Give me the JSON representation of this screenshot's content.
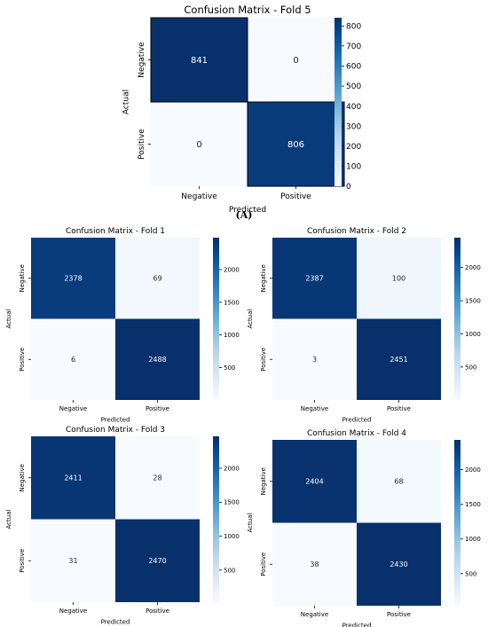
{
  "caption": "(A)",
  "chart_data": [
    {
      "type": "heatmap",
      "title": "Confusion Matrix - Fold 5",
      "xlabel": "Predicted",
      "ylabel": "Actual",
      "x_categories": [
        "Negative",
        "Positive"
      ],
      "y_categories": [
        "Negative",
        "Positive"
      ],
      "matrix": [
        [
          841,
          0
        ],
        [
          0,
          806
        ]
      ],
      "colorbar": {
        "colormap": "Blues",
        "range": [
          0,
          841
        ],
        "ticks": [
          0,
          100,
          200,
          300,
          400,
          500,
          600,
          700,
          800
        ]
      },
      "grid": false,
      "legend": "none"
    },
    {
      "type": "heatmap",
      "title": "Confusion Matrix - Fold 1",
      "xlabel": "Predicted",
      "ylabel": "Actual",
      "x_categories": [
        "Negative",
        "Positive"
      ],
      "y_categories": [
        "Negative",
        "Positive"
      ],
      "matrix": [
        [
          2378,
          69
        ],
        [
          6,
          2488
        ]
      ],
      "colorbar": {
        "colormap": "Blues",
        "range": [
          6,
          2488
        ],
        "ticks": [
          500,
          1000,
          1500,
          2000
        ]
      },
      "grid": false,
      "legend": "none"
    },
    {
      "type": "heatmap",
      "title": "Confusion Matrix - Fold 2",
      "xlabel": "Predicted",
      "ylabel": "Actual",
      "x_categories": [
        "Negative",
        "Positive"
      ],
      "y_categories": [
        "Negative",
        "Positive"
      ],
      "matrix": [
        [
          2387,
          100
        ],
        [
          3,
          2451
        ]
      ],
      "colorbar": {
        "colormap": "Blues",
        "range": [
          3,
          2451
        ],
        "ticks": [
          500,
          1000,
          1500,
          2000
        ]
      },
      "grid": false,
      "legend": "none"
    },
    {
      "type": "heatmap",
      "title": "Confusion Matrix - Fold 3",
      "xlabel": "Predicted",
      "ylabel": "Actual",
      "x_categories": [
        "Negative",
        "Positive"
      ],
      "y_categories": [
        "Negative",
        "Positive"
      ],
      "matrix": [
        [
          2411,
          28
        ],
        [
          31,
          2470
        ]
      ],
      "colorbar": {
        "colormap": "Blues",
        "range": [
          28,
          2470
        ],
        "ticks": [
          500,
          1000,
          1500,
          2000
        ]
      },
      "grid": false,
      "legend": "none"
    },
    {
      "type": "heatmap",
      "title": "Confusion Matrix - Fold 4",
      "xlabel": "Predicted",
      "ylabel": "Actual",
      "x_categories": [
        "Negative",
        "Positive"
      ],
      "y_categories": [
        "Negative",
        "Positive"
      ],
      "matrix": [
        [
          2404,
          68
        ],
        [
          38,
          2430
        ]
      ],
      "colorbar": {
        "colormap": "Blues",
        "range": [
          38,
          2430
        ],
        "ticks": [
          500,
          1000,
          1500,
          2000
        ]
      },
      "grid": false,
      "legend": "none"
    }
  ]
}
